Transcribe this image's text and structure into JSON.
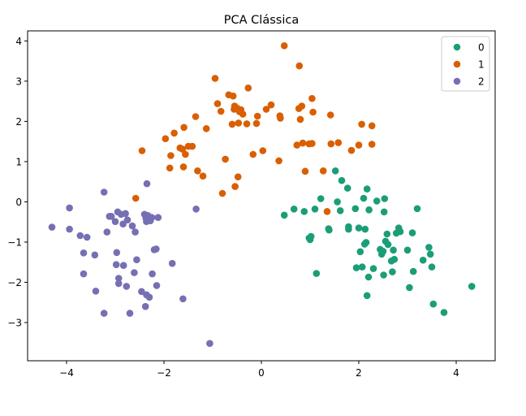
{
  "chart_data": {
    "type": "scatter",
    "title": "PCA Clássica",
    "xlabel": "",
    "ylabel": "",
    "xlim": [
      -4.8,
      4.8
    ],
    "ylim": [
      -3.95,
      4.25
    ],
    "xticks": [
      -4,
      -2,
      0,
      2,
      4
    ],
    "xtick_labels": [
      "−4",
      "−2",
      "0",
      "2",
      "4"
    ],
    "yticks": [
      -3,
      -2,
      -1,
      0,
      1,
      2,
      3,
      4
    ],
    "ytick_labels": [
      "−3",
      "−2",
      "−1",
      "0",
      "1",
      "2",
      "3",
      "4"
    ],
    "grid": false,
    "legend_position": "top-right",
    "series": [
      {
        "name": "0",
        "color": "#1b9e77",
        "points": [
          [
            0.47,
            -0.33
          ],
          [
            0.67,
            -0.18
          ],
          [
            0.88,
            -0.24
          ],
          [
            0.98,
            -0.9
          ],
          [
            1.0,
            -0.94
          ],
          [
            1.02,
            -0.86
          ],
          [
            1.1,
            -0.18
          ],
          [
            1.13,
            -1.78
          ],
          [
            1.22,
            0.08
          ],
          [
            1.38,
            -0.67
          ],
          [
            1.39,
            -0.7
          ],
          [
            1.52,
            0.77
          ],
          [
            1.56,
            0.0
          ],
          [
            1.62,
            -0.22
          ],
          [
            1.65,
            0.53
          ],
          [
            1.77,
            0.34
          ],
          [
            1.79,
            -0.62
          ],
          [
            1.79,
            -0.68
          ],
          [
            1.93,
            -0.17
          ],
          [
            1.95,
            -1.64
          ],
          [
            2.0,
            -0.65
          ],
          [
            2.03,
            -1.24
          ],
          [
            2.07,
            -1.62
          ],
          [
            2.1,
            0.09
          ],
          [
            2.12,
            -1.05
          ],
          [
            2.13,
            -0.68
          ],
          [
            2.15,
            -1.01
          ],
          [
            2.17,
            0.32
          ],
          [
            2.17,
            -2.33
          ],
          [
            2.2,
            -1.87
          ],
          [
            2.21,
            -0.2
          ],
          [
            2.3,
            -1.66
          ],
          [
            2.37,
            0.02
          ],
          [
            2.44,
            -1.18
          ],
          [
            2.47,
            -1.3
          ],
          [
            2.5,
            -1.23
          ],
          [
            2.51,
            -1.82
          ],
          [
            2.52,
            -0.25
          ],
          [
            2.53,
            0.08
          ],
          [
            2.55,
            -0.98
          ],
          [
            2.58,
            -0.8
          ],
          [
            2.6,
            -1.06
          ],
          [
            2.67,
            -1.47
          ],
          [
            2.69,
            -1.74
          ],
          [
            2.71,
            -1.2
          ],
          [
            2.73,
            -1.43
          ],
          [
            2.77,
            -0.78
          ],
          [
            2.82,
            -0.65
          ],
          [
            2.85,
            -0.74
          ],
          [
            3.0,
            -1.2
          ],
          [
            3.04,
            -2.13
          ],
          [
            3.1,
            -0.77
          ],
          [
            3.12,
            -1.73
          ],
          [
            3.2,
            -0.17
          ],
          [
            3.32,
            -1.45
          ],
          [
            3.44,
            -1.13
          ],
          [
            3.47,
            -1.3
          ],
          [
            3.5,
            -1.62
          ],
          [
            3.53,
            -2.54
          ],
          [
            3.75,
            -2.75
          ],
          [
            4.32,
            -2.1
          ]
        ]
      },
      {
        "name": "1",
        "color": "#d95f02",
        "points": [
          [
            -2.58,
            0.09
          ],
          [
            -2.45,
            1.27
          ],
          [
            -1.97,
            1.57
          ],
          [
            -1.88,
            0.84
          ],
          [
            -1.86,
            1.15
          ],
          [
            -1.79,
            1.71
          ],
          [
            -1.67,
            1.34
          ],
          [
            -1.62,
            1.31
          ],
          [
            -1.6,
            0.87
          ],
          [
            -1.59,
            1.85
          ],
          [
            -1.56,
            1.18
          ],
          [
            -1.5,
            1.38
          ],
          [
            -1.42,
            1.38
          ],
          [
            -1.35,
            2.12
          ],
          [
            -1.31,
            0.77
          ],
          [
            -1.2,
            0.64
          ],
          [
            -1.13,
            1.82
          ],
          [
            -0.95,
            3.07
          ],
          [
            -0.9,
            2.44
          ],
          [
            -0.83,
            2.25
          ],
          [
            -0.8,
            0.21
          ],
          [
            -0.74,
            1.06
          ],
          [
            -0.67,
            2.66
          ],
          [
            -0.6,
            1.93
          ],
          [
            -0.58,
            2.63
          ],
          [
            -0.56,
            2.3
          ],
          [
            -0.55,
            2.38
          ],
          [
            -0.54,
            0.38
          ],
          [
            -0.5,
            2.33
          ],
          [
            -0.48,
            0.62
          ],
          [
            -0.47,
            1.96
          ],
          [
            -0.45,
            2.24
          ],
          [
            -0.42,
            2.29
          ],
          [
            -0.38,
            2.18
          ],
          [
            -0.3,
            1.94
          ],
          [
            -0.27,
            2.83
          ],
          [
            -0.17,
            1.18
          ],
          [
            -0.1,
            1.95
          ],
          [
            -0.08,
            2.13
          ],
          [
            0.03,
            1.27
          ],
          [
            0.1,
            2.3
          ],
          [
            0.2,
            2.41
          ],
          [
            0.36,
            1.02
          ],
          [
            0.38,
            2.14
          ],
          [
            0.39,
            2.08
          ],
          [
            0.47,
            3.88
          ],
          [
            0.73,
            1.41
          ],
          [
            0.77,
            2.32
          ],
          [
            0.78,
            3.38
          ],
          [
            0.8,
            2.05
          ],
          [
            0.83,
            2.38
          ],
          [
            0.85,
            1.46
          ],
          [
            0.9,
            0.76
          ],
          [
            0.98,
            1.44
          ],
          [
            1.04,
            1.45
          ],
          [
            1.04,
            2.57
          ],
          [
            1.06,
            2.23
          ],
          [
            1.27,
            0.77
          ],
          [
            1.35,
            -0.24
          ],
          [
            1.42,
            2.16
          ],
          [
            1.43,
            1.44
          ],
          [
            1.58,
            1.47
          ],
          [
            1.85,
            1.28
          ],
          [
            2.0,
            1.41
          ],
          [
            2.06,
            1.93
          ],
          [
            2.27,
            1.43
          ],
          [
            2.27,
            1.89
          ]
        ]
      },
      {
        "name": "2",
        "color": "#7570b3",
        "points": [
          [
            -4.3,
            -0.63
          ],
          [
            -3.94,
            -0.15
          ],
          [
            -3.94,
            -0.68
          ],
          [
            -3.72,
            -0.84
          ],
          [
            -3.65,
            -1.27
          ],
          [
            -3.65,
            -1.79
          ],
          [
            -3.58,
            -0.88
          ],
          [
            -3.42,
            -1.32
          ],
          [
            -3.4,
            -2.22
          ],
          [
            -3.23,
            0.24
          ],
          [
            -3.23,
            -2.77
          ],
          [
            -3.17,
            -0.75
          ],
          [
            -3.12,
            -0.36
          ],
          [
            -3.08,
            -0.36
          ],
          [
            -3.0,
            -0.49
          ],
          [
            -2.98,
            -1.56
          ],
          [
            -2.97,
            -1.26
          ],
          [
            -2.95,
            -0.25
          ],
          [
            -2.93,
            -1.9
          ],
          [
            -2.93,
            -2.03
          ],
          [
            -2.88,
            -0.31
          ],
          [
            -2.84,
            -0.55
          ],
          [
            -2.83,
            -1.58
          ],
          [
            -2.79,
            -0.29
          ],
          [
            -2.77,
            -2.1
          ],
          [
            -2.75,
            -0.45
          ],
          [
            -2.7,
            -2.77
          ],
          [
            -2.65,
            -0.6
          ],
          [
            -2.61,
            -1.76
          ],
          [
            -2.59,
            -0.75
          ],
          [
            -2.56,
            -1.44
          ],
          [
            -2.46,
            -2.23
          ],
          [
            -2.4,
            -0.31
          ],
          [
            -2.38,
            -2.6
          ],
          [
            -2.37,
            -0.41
          ],
          [
            -2.36,
            -2.31
          ],
          [
            -2.36,
            -0.49
          ],
          [
            -2.35,
            0.45
          ],
          [
            -2.33,
            -0.34
          ],
          [
            -2.3,
            -2.37
          ],
          [
            -2.28,
            -0.47
          ],
          [
            -2.25,
            -0.39
          ],
          [
            -2.24,
            -1.79
          ],
          [
            -2.2,
            -1.19
          ],
          [
            -2.16,
            -1.17
          ],
          [
            -2.15,
            -2.08
          ],
          [
            -2.12,
            -0.39
          ],
          [
            -1.83,
            -1.53
          ],
          [
            -1.61,
            -2.41
          ],
          [
            -1.34,
            -0.18
          ],
          [
            -1.06,
            -3.52
          ]
        ]
      }
    ]
  }
}
